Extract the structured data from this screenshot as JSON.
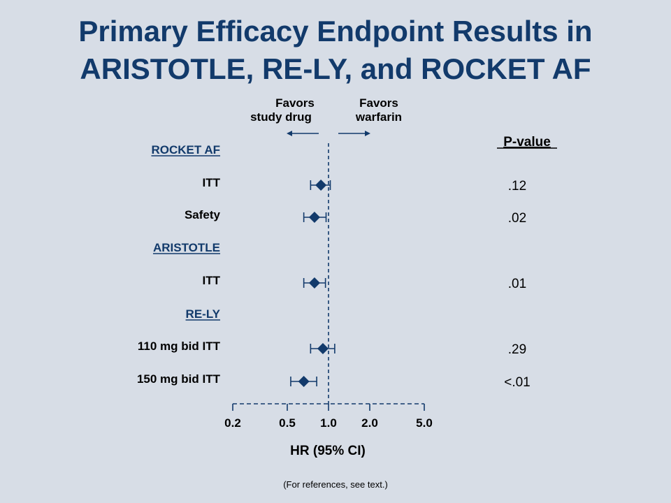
{
  "title_lines": [
    "Primary Efficacy Endpoint Results in",
    "ARISTOTLE, RE-LY, and ROCKET AF"
  ],
  "footnote": "(For references, see text.)",
  "colors": {
    "accent": "#123a6b",
    "background": "#d7dde6",
    "ink": "#000000"
  },
  "chart_data": {
    "type": "forest",
    "scale": "log",
    "xlim": [
      0.2,
      5.0
    ],
    "xticks": [
      {
        "value": 0.2,
        "label": "0.2"
      },
      {
        "value": 0.5,
        "label": "0.5"
      },
      {
        "value": 1.0,
        "label": "1.0"
      },
      {
        "value": 2.0,
        "label": "2.0"
      },
      {
        "value": 5.0,
        "label": "5.0"
      }
    ],
    "reference_line": 1.0,
    "xlabel": "HR (95%  CI)",
    "favors_left": [
      "Favors",
      "study drug"
    ],
    "favors_right": [
      "Favors",
      "warfarin"
    ],
    "pvalue_header": "P-value",
    "rows": [
      {
        "kind": "group",
        "label": "ROCKET AF"
      },
      {
        "kind": "estimate",
        "label": "ITT",
        "hr": 0.88,
        "ci": [
          0.74,
          1.03
        ],
        "p": ".12"
      },
      {
        "kind": "estimate",
        "label": "Safety",
        "hr": 0.79,
        "ci": [
          0.66,
          0.96
        ],
        "p": ".02"
      },
      {
        "kind": "group",
        "label": "ARISTOTLE"
      },
      {
        "kind": "estimate",
        "label": "ITT",
        "hr": 0.79,
        "ci": [
          0.66,
          0.95
        ],
        "p": ".01"
      },
      {
        "kind": "group",
        "label": "RE-LY"
      },
      {
        "kind": "estimate",
        "label": "110 mg bid ITT",
        "hr": 0.91,
        "ci": [
          0.74,
          1.11
        ],
        "p": ".29"
      },
      {
        "kind": "estimate",
        "label": "150 mg bid ITT",
        "hr": 0.66,
        "ci": [
          0.53,
          0.82
        ],
        "p": "<.01"
      }
    ]
  }
}
